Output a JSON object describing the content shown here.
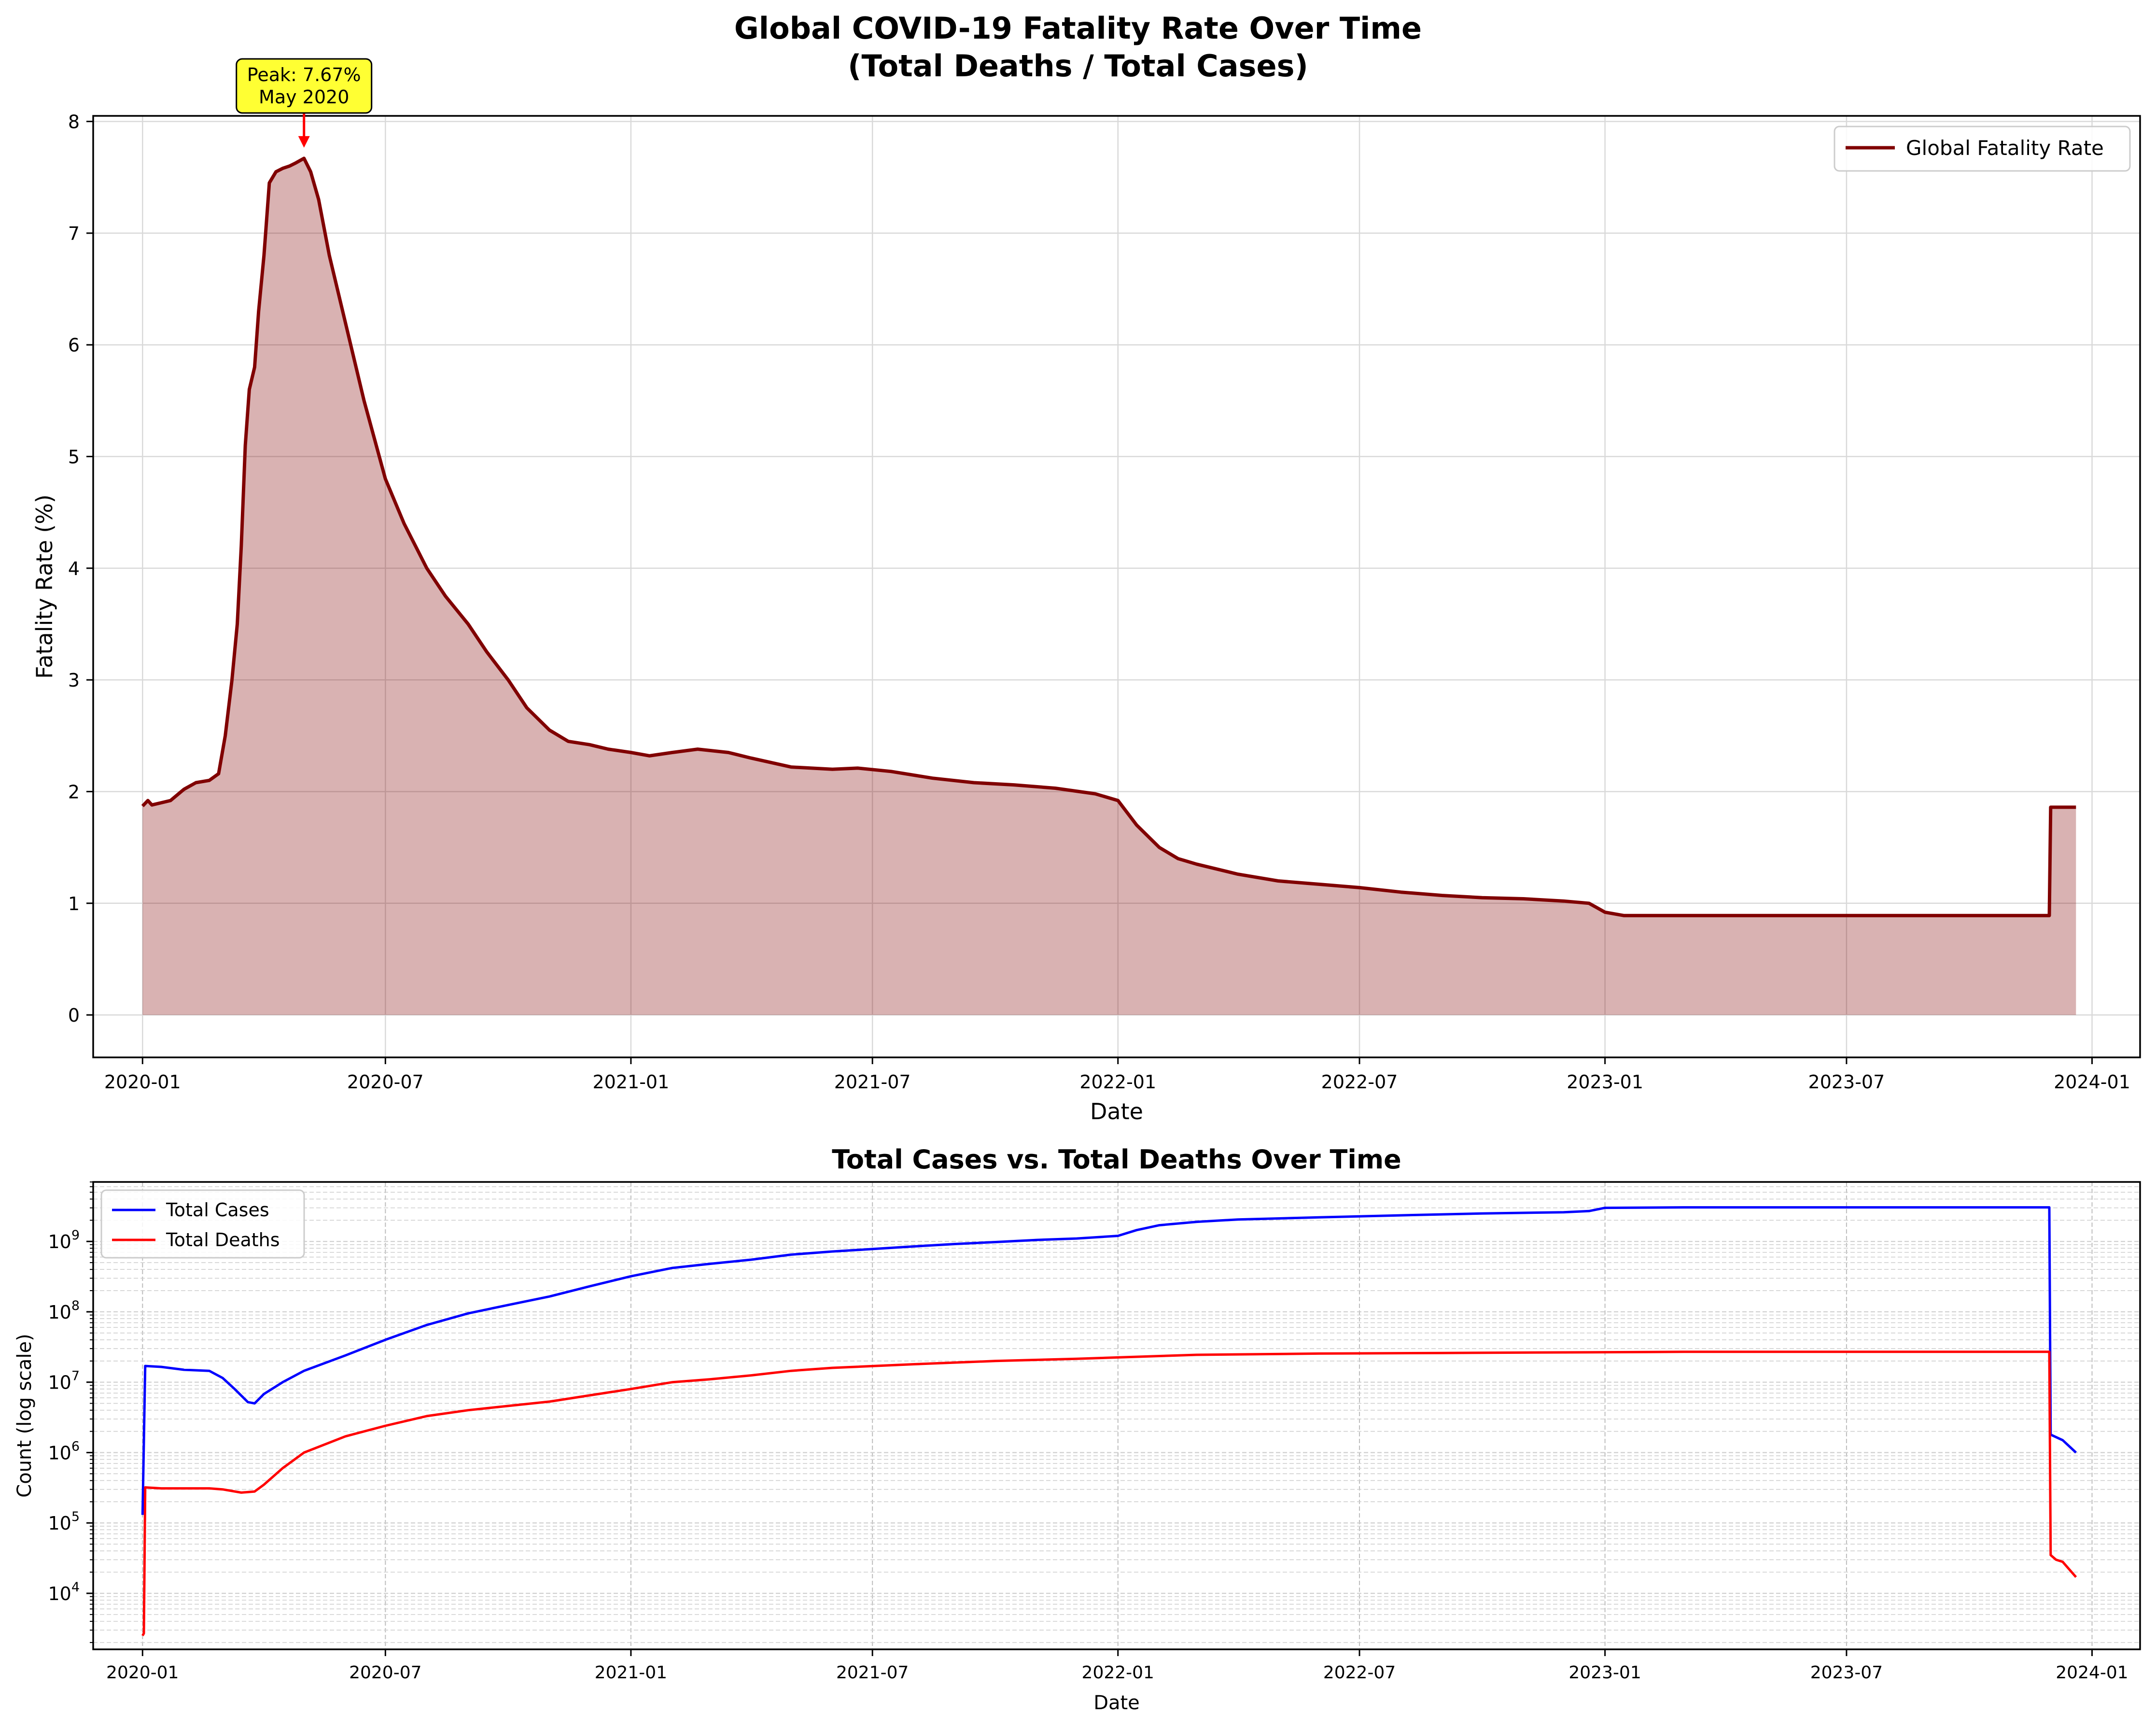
{
  "figure_title_line1": "Global COVID-19 Fatality Rate Over Time",
  "figure_title_line2": "(Total Deaths / Total Cases)",
  "colors": {
    "fatality_line": "#800000",
    "fatality_fill": "#800000",
    "cases": "#0000ff",
    "deaths": "#ff0000",
    "annotation_box": "#ffff33",
    "annotation_arrow": "#ff0000",
    "grid": "#d9d9d9"
  },
  "chart_data": [
    {
      "type": "area",
      "title": "",
      "xlabel": "Date",
      "ylabel": "Fatality Rate (%)",
      "x_ticks": [
        "2020-01",
        "2020-07",
        "2021-01",
        "2021-07",
        "2022-01",
        "2022-07",
        "2023-01",
        "2023-07",
        "2024-01"
      ],
      "y_ticks": [
        "0",
        "1",
        "2",
        "3",
        "4",
        "5",
        "6",
        "7",
        "8"
      ],
      "ylim": [
        -0.38,
        8.05
      ],
      "xlim": [
        "2019-11-25",
        "2024-02-06"
      ],
      "grid": true,
      "legend": {
        "placement": "top-right",
        "entries": [
          "Global Fatality Rate"
        ]
      },
      "annotation": {
        "line1": "Peak: 7.67%",
        "line2": "May 2020",
        "x": "2020-05-01",
        "y": 7.67
      },
      "series": [
        {
          "name": "Global Fatality Rate",
          "x": [
            "2020-01-01",
            "2020-01-05",
            "2020-01-08",
            "2020-01-15",
            "2020-01-22",
            "2020-02-01",
            "2020-02-10",
            "2020-02-20",
            "2020-02-27",
            "2020-03-03",
            "2020-03-08",
            "2020-03-12",
            "2020-03-15",
            "2020-03-18",
            "2020-03-21",
            "2020-03-25",
            "2020-03-28",
            "2020-04-01",
            "2020-04-05",
            "2020-04-10",
            "2020-04-15",
            "2020-04-20",
            "2020-04-25",
            "2020-05-01",
            "2020-05-06",
            "2020-05-12",
            "2020-05-20",
            "2020-06-01",
            "2020-06-15",
            "2020-07-01",
            "2020-07-15",
            "2020-08-01",
            "2020-08-15",
            "2020-09-01",
            "2020-09-15",
            "2020-10-01",
            "2020-10-15",
            "2020-11-01",
            "2020-11-15",
            "2020-12-01",
            "2020-12-15",
            "2021-01-01",
            "2021-01-15",
            "2021-02-01",
            "2021-02-20",
            "2021-03-15",
            "2021-04-01",
            "2021-05-01",
            "2021-06-01",
            "2021-06-20",
            "2021-07-15",
            "2021-08-15",
            "2021-09-15",
            "2021-10-15",
            "2021-11-15",
            "2021-12-15",
            "2022-01-01",
            "2022-01-15",
            "2022-02-01",
            "2022-02-15",
            "2022-03-01",
            "2022-04-01",
            "2022-05-01",
            "2022-06-01",
            "2022-07-01",
            "2022-08-01",
            "2022-09-01",
            "2022-10-01",
            "2022-11-01",
            "2022-12-01",
            "2022-12-20",
            "2023-01-01",
            "2023-01-15",
            "2023-02-01",
            "2023-03-01",
            "2023-04-01",
            "2023-06-01",
            "2023-08-01",
            "2023-10-01",
            "2023-11-30",
            "2023-12-01",
            "2023-12-20"
          ],
          "y": [
            1.87,
            1.92,
            1.88,
            1.9,
            1.92,
            2.02,
            2.08,
            2.1,
            2.16,
            2.5,
            3.0,
            3.5,
            4.2,
            5.1,
            5.6,
            5.8,
            6.3,
            6.8,
            7.45,
            7.55,
            7.58,
            7.6,
            7.63,
            7.67,
            7.55,
            7.3,
            6.8,
            6.2,
            5.5,
            4.8,
            4.4,
            4.0,
            3.75,
            3.5,
            3.25,
            3.0,
            2.75,
            2.55,
            2.45,
            2.42,
            2.38,
            2.35,
            2.32,
            2.35,
            2.38,
            2.35,
            2.3,
            2.22,
            2.2,
            2.21,
            2.18,
            2.12,
            2.08,
            2.06,
            2.03,
            1.98,
            1.92,
            1.7,
            1.5,
            1.4,
            1.35,
            1.26,
            1.2,
            1.17,
            1.14,
            1.1,
            1.07,
            1.05,
            1.04,
            1.02,
            1.0,
            0.92,
            0.89,
            0.89,
            0.89,
            0.89,
            0.89,
            0.89,
            0.89,
            0.89,
            1.86,
            1.86
          ]
        }
      ]
    },
    {
      "type": "line",
      "title": "Total Cases vs. Total Deaths Over Time",
      "xlabel": "Date",
      "ylabel": "Count (log scale)",
      "y_scale": "log",
      "ylim": [
        1600,
        7000000000
      ],
      "xlim": [
        "2019-11-25",
        "2024-02-06"
      ],
      "x_ticks": [
        "2020-01",
        "2020-07",
        "2021-01",
        "2021-07",
        "2022-01",
        "2022-07",
        "2023-01",
        "2023-07",
        "2024-01"
      ],
      "y_ticks": [
        {
          "base": "10",
          "exp": "4",
          "value": 10000
        },
        {
          "base": "10",
          "exp": "5",
          "value": 100000
        },
        {
          "base": "10",
          "exp": "6",
          "value": 1000000
        },
        {
          "base": "10",
          "exp": "7",
          "value": 10000000
        },
        {
          "base": "10",
          "exp": "8",
          "value": 100000000
        },
        {
          "base": "10",
          "exp": "9",
          "value": 1000000000
        }
      ],
      "grid": true,
      "legend": {
        "placement": "top-left",
        "entries": [
          "Total Cases",
          "Total Deaths"
        ]
      },
      "series": [
        {
          "name": "Total Cases",
          "x": [
            "2020-01-01",
            "2020-01-03",
            "2020-01-15",
            "2020-02-01",
            "2020-02-20",
            "2020-03-01",
            "2020-03-10",
            "2020-03-20",
            "2020-03-25",
            "2020-04-01",
            "2020-04-15",
            "2020-05-01",
            "2020-06-01",
            "2020-07-01",
            "2020-08-01",
            "2020-09-01",
            "2020-10-01",
            "2020-11-01",
            "2020-12-01",
            "2021-01-01",
            "2021-02-01",
            "2021-03-01",
            "2021-04-01",
            "2021-05-01",
            "2021-06-01",
            "2021-07-01",
            "2021-08-01",
            "2021-09-01",
            "2021-10-01",
            "2021-11-01",
            "2021-12-01",
            "2022-01-01",
            "2022-01-15",
            "2022-02-01",
            "2022-03-01",
            "2022-04-01",
            "2022-06-01",
            "2022-08-01",
            "2022-10-01",
            "2022-12-01",
            "2022-12-20",
            "2023-01-01",
            "2023-03-01",
            "2023-06-01",
            "2023-09-01",
            "2023-11-30",
            "2023-12-01",
            "2023-12-10",
            "2023-12-20"
          ],
          "y": [
            130000,
            17000000,
            16500000,
            15000000,
            14500000,
            11500000,
            8000000,
            5200000,
            5000000,
            6800000,
            10000000,
            14500000,
            24000000,
            40000000,
            65000000,
            95000000,
            125000000,
            165000000,
            230000000,
            320000000,
            420000000,
            480000000,
            550000000,
            650000000,
            720000000,
            780000000,
            850000000,
            920000000,
            980000000,
            1050000000,
            1100000000,
            1200000000,
            1450000000,
            1700000000,
            1900000000,
            2050000000,
            2200000000,
            2350000000,
            2500000000,
            2600000000,
            2700000000,
            3000000000,
            3050000000,
            3050000000,
            3050000000,
            3050000000,
            1800000,
            1500000,
            1000000
          ]
        },
        {
          "name": "Total Deaths",
          "x": [
            "2020-01-01",
            "2020-01-02",
            "2020-01-03",
            "2020-01-15",
            "2020-02-01",
            "2020-02-20",
            "2020-03-01",
            "2020-03-15",
            "2020-03-25",
            "2020-04-01",
            "2020-04-15",
            "2020-05-01",
            "2020-06-01",
            "2020-07-01",
            "2020-08-01",
            "2020-09-01",
            "2020-10-01",
            "2020-11-01",
            "2020-12-01",
            "2021-01-01",
            "2021-02-01",
            "2021-03-01",
            "2021-04-01",
            "2021-05-01",
            "2021-06-01",
            "2021-08-01",
            "2021-10-01",
            "2021-12-01",
            "2022-01-01",
            "2022-03-01",
            "2022-06-01",
            "2022-09-01",
            "2022-12-01",
            "2023-03-01",
            "2023-06-01",
            "2023-09-01",
            "2023-11-30",
            "2023-12-01",
            "2023-12-05",
            "2023-12-10",
            "2023-12-20"
          ],
          "y": [
            2500,
            2700,
            320000,
            310000,
            310000,
            310000,
            300000,
            270000,
            280000,
            350000,
            600000,
            1000000,
            1700000,
            2400000,
            3300000,
            4000000,
            4600000,
            5300000,
            6500000,
            8000000,
            10000000,
            11000000,
            12500000,
            14500000,
            16000000,
            18000000,
            20000000,
            21500000,
            22500000,
            24500000,
            25500000,
            26000000,
            26500000,
            27000000,
            27000000,
            27000000,
            27000000,
            35000,
            30000,
            28000,
            17000
          ]
        }
      ]
    }
  ]
}
